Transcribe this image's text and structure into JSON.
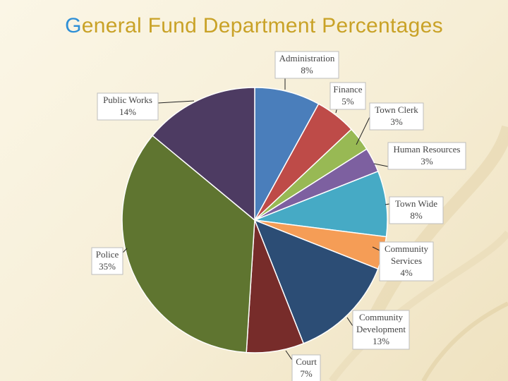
{
  "title": {
    "first_letter": "G",
    "rest": "eneral Fund Department Percentages"
  },
  "colors": {
    "title": "#c9a227",
    "title_accent": "#2e8fd6",
    "background": "#f6eed6"
  },
  "chart_data": {
    "type": "pie",
    "title": "General Fund Department Percentages",
    "start": "12 o'clock, clockwise",
    "slices": [
      {
        "label": "Administration",
        "value": 8,
        "display": "8%",
        "color": "#4a7ebb"
      },
      {
        "label": "Finance",
        "value": 5,
        "display": "5%",
        "color": "#be4b48"
      },
      {
        "label": "Town Clerk",
        "value": 3,
        "display": "3%",
        "color": "#98b954"
      },
      {
        "label": "Human Resources",
        "value": 3,
        "display": "3%",
        "color": "#7d60a0"
      },
      {
        "label": "Town Wide",
        "value": 8,
        "display": "8%",
        "color": "#46aac5"
      },
      {
        "label": "Community Services",
        "value": 4,
        "display": "4%",
        "color": "#f59d56"
      },
      {
        "label": "Community Development",
        "value": 13,
        "display": "13%",
        "color": "#2c4d75"
      },
      {
        "label": "Court",
        "value": 7,
        "display": "7%",
        "color": "#772c2a"
      },
      {
        "label": "Police",
        "value": 35,
        "display": "35%",
        "color": "#5f7530"
      },
      {
        "label": "Public Works",
        "value": 14,
        "display": "14%",
        "color": "#4d3b62"
      }
    ]
  }
}
